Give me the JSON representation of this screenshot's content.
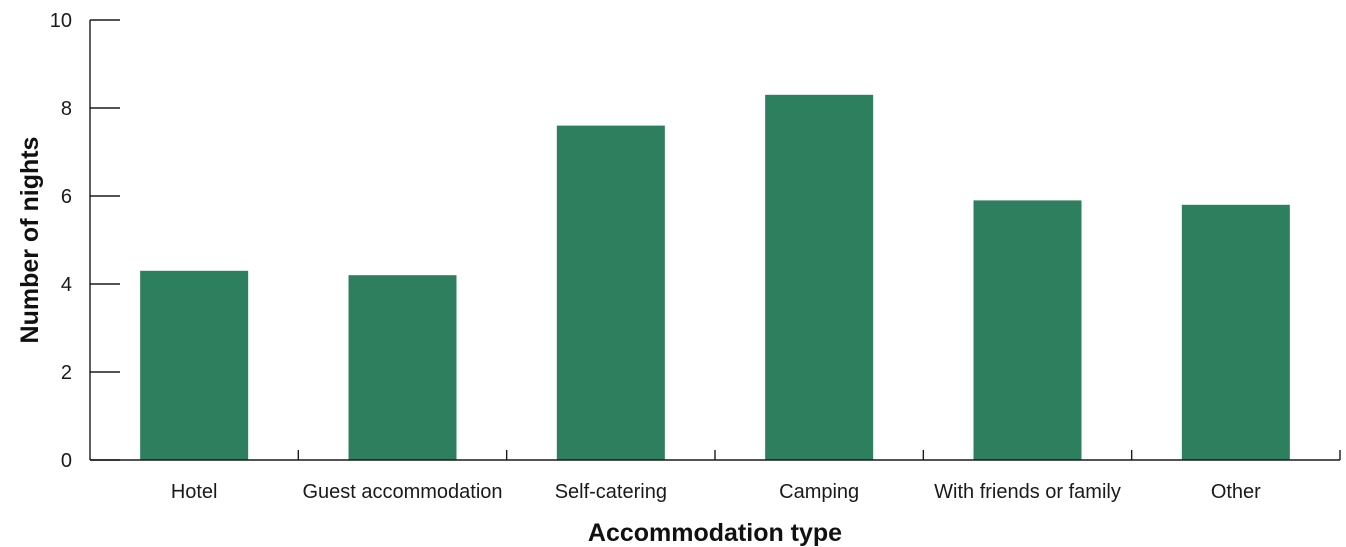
{
  "chart_data": {
    "type": "bar",
    "categories": [
      "Hotel",
      "Guest accommodation",
      "Self-catering",
      "Camping",
      "With friends or family",
      "Other"
    ],
    "values": [
      4.3,
      4.2,
      7.6,
      8.3,
      5.9,
      5.8
    ],
    "xlabel": "Accommodation type",
    "ylabel": "Number of nights",
    "ylim": [
      0,
      10
    ],
    "yticks": [
      0,
      2,
      4,
      6,
      8,
      10
    ],
    "grid": false,
    "bar_color": "#2e7f5e"
  }
}
